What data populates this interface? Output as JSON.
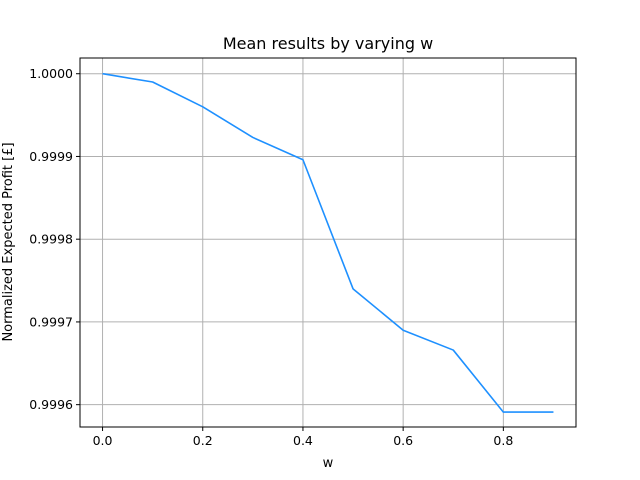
{
  "chart_data": {
    "type": "line",
    "title": "Mean results by varying w",
    "xlabel": "w",
    "ylabel": "Normalized Expected Profit [£]",
    "x": [
      0.0,
      0.1,
      0.2,
      0.3,
      0.4,
      0.5,
      0.6,
      0.7,
      0.8,
      0.9
    ],
    "series": [
      {
        "values": [
          1.0,
          0.99999,
          0.99996,
          0.999923,
          0.999896,
          0.99974,
          0.99969,
          0.999666,
          0.999591,
          0.999591
        ],
        "color": "#1e90ff"
      }
    ],
    "xlim": [
      -0.045,
      0.945
    ],
    "ylim": [
      0.999573,
      1.000019
    ],
    "xticks": [
      0.0,
      0.2,
      0.4,
      0.6,
      0.8
    ],
    "xtick_labels": [
      "0.0",
      "0.2",
      "0.4",
      "0.6",
      "0.8"
    ],
    "yticks": [
      0.9996,
      0.9997,
      0.9998,
      0.9999,
      1.0
    ],
    "ytick_labels": [
      "0.9996",
      "0.9997",
      "0.9998",
      "0.9999",
      "1.0000"
    ],
    "grid": true
  }
}
